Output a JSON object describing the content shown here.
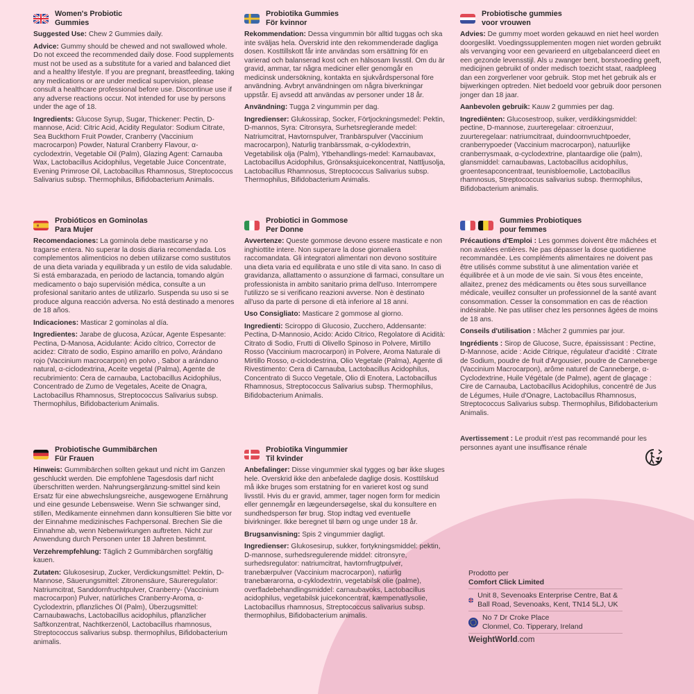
{
  "colors": {
    "background": "#fde0e7",
    "blob": "#f1c0d0",
    "text": "#3a3a3a"
  },
  "sections": [
    {
      "flags": [
        "uk-flag-icon"
      ],
      "title": [
        "Women's Probiotic",
        "Gummies"
      ],
      "paras": [
        {
          "label": "Suggested Use:",
          "text": "Chew 2 Gummies daily."
        },
        {
          "label": "Advice:",
          "text": "Gummy should be chewed and not swallowed whole. Do not exceed the recommended daily dose. Food supplements must not be used as a substitute for a varied and balanced diet and a healthy lifestyle. If you are pregnant, breastfeeding, taking any medications or are under medical supervision, please consult a healthcare professional before use. Discontinue use if any adverse reactions occur. Not intended for use by persons under the age of 18."
        },
        {
          "label": "Ingredients:",
          "text": "Glucose Syrup, Sugar, Thickener: Pectin, D-mannose, Acid: Citric Acid, Acidity Regulator: Sodium Citrate, Sea Buckthorn Fruit Powder, Cranberry (Vaccinium macrocarpon) Powder, Natural Cranberry Flavour, α-cyclodextrin, Vegetable Oil (Palm), Glazing Agent: Carnauba Wax, Lactobacillus Acidophilus, Vegetable Juice Concentrate, Evening Primrose Oil, Lactobacillus Rhamnosus, Streptococcus Salivarius subsp. Thermophilus, Bifidobacterium Animalis."
        }
      ]
    },
    {
      "flags": [
        "sweden-flag-icon"
      ],
      "title": [
        "Probiotika Gummies",
        "För kvinnor"
      ],
      "paras": [
        {
          "label": "Rekommendation:",
          "text": "Dessa vingummin bör alltid tuggas och ska inte sväljas hela. Överskrid inte den rekommenderade dagliga dosen. Kosttillskott får inte användas som ersättning för en varierad och balanserad kost och en hälsosam livsstil. Om du är gravid, ammar, tar några mediciner eller genomgår en medicinsk undersökning, kontakta en sjukvårdspersonal före användning. Avbryt användningen om några biverkningar uppstår. Ej avsedd att användas av personer under 18 år."
        },
        {
          "label": "Användning:",
          "text": "Tugga 2 vingummin per dag."
        },
        {
          "label": "Ingredienser:",
          "text": "Glukossirap, Socker, Förtjockningsmedel: Pektin, D-mannos, Syra: Citronsyra, Surhetsreglerande medel: Natriumcitrat, Havtornspulver, Tranbärspulver (Vaccinium macrocarpon), Naturlig tranbärssmak, α-cyklodextrin, Vegetabilisk olja (Palm), Ytbehandlings-medel: Karnaubavax, Lactobacillus Acidophilus, Grönsaksjuicekoncentrat, Nattljusolja, Lactobacillus Rhamnosus, Streptococcus Salivarius subsp. Thermophilus, Bifidobacterium Animalis."
        }
      ]
    },
    {
      "flags": [
        "netherlands-flag-icon"
      ],
      "title": [
        "Probiotische gummies",
        "voor vrouwen"
      ],
      "paras": [
        {
          "label": "Advies:",
          "text": "De gummy moet worden gekauwd en niet heel worden doorgeslikt.  Voedingssupplementen mogen niet worden gebruikt als vervanging voor een gevarieerd en uitgebalanceerd dieet en een gezonde levensstijl. Als u zwanger bent, borstvoeding geeft, medicijnen gebruikt of onder medisch toezicht staat, raadpleeg dan een zorgverlener voor gebruik. Stop met het gebruik als er bijwerkingen optreden. Niet bedoeld voor gebruik door personen jonger dan 18 jaar."
        },
        {
          "label": "Aanbevolen gebruik:",
          "text": "Kauw 2 gummies per dag."
        },
        {
          "label": "Ingrediënten:",
          "text": "Glucosestroop, suiker, verdikkingsmiddel: pectine, D-mannose, zuurteregelaar: citroenzuur, zuurteregelaar: natriumcitraat, duindoornvruchtpoeder, cranberrypoeder (Vaccinium macrocarpon), natuurlijke cranberrysmaak, α-cyclodextrine, plantaardige olie (palm), glansmiddel: carnaubawas, Lactobacillus acidophilus, groentesapconcentraat, teunisbloemolie, Lactobacillus rhamnosus, Streptococcus salivarius subsp. thermophilus, Bifidobacterium animalis."
        }
      ]
    },
    {
      "flags": [
        "spain-flag-icon"
      ],
      "title": [
        "Probióticos en Gominolas",
        "Para Mujer"
      ],
      "paras": [
        {
          "label": "Recomendaciones:",
          "text": "La gominola debe masticarse y no tragarse entera. No superar la dosis diaria recomendada. Los complementos alimenticios no deben utilizarse como sustitutos de una dieta variada y equilibrada y un estilo de vida saludable. Si está embarazada, en periodo de lactancia, tomando algún medicamento o bajo supervisión médica, consulte a un profesional sanitario antes de utilizarlo. Suspenda su uso si se produce alguna reacción adversa. No está destinado a menores de 18 años."
        },
        {
          "label": "Indicaciones:",
          "text": "Masticar 2 gominolas al día."
        },
        {
          "label": "Ingredientes:",
          "text": "Jarabe de glucosa, Azúcar, Agente Espesante: Pectina, D-Manosa, Acidulante: Ácido cítrico, Corrector de acidez: Citrato de sodio, Espino amarillo en polvo, Arándano rojo (Vaccinium macrocarpon) en polvo , Sabor a arándano natural, α-ciclodextrina, Aceite vegetal (Palma), Agente de recubrimiento: Cera de carnauba, Lactobacillus Acidophilus, Concentrado de Zumo de Vegetales, Aceite de Onagra, Lactobacillus Rhamnosus, Streptococcus Salivarius subsp. Thermophilus, Bifidobacterium Animalis."
        }
      ]
    },
    {
      "flags": [
        "italy-flag-icon"
      ],
      "title": [
        "Probiotici in Gommose",
        "Per Donne"
      ],
      "paras": [
        {
          "label": "Avvertenze:",
          "text": "Queste gommose devono essere masticate e non inghiottite intere. Non superare la dose giornaliera raccomandata. Gli integratori alimentari non devono sostituire una dieta varia ed equilibrata e uno stile di vita sano. In caso di gravidanza, allattamento o assunzione di farmaci, consultare un professionista in ambito sanitario prima dell'uso. Interrompere l'utilizzo se si verificano reazioni avverse. Non è destinato all'uso da parte di persone di età inferiore al 18 anni."
        },
        {
          "label": "Uso Consigliato:",
          "text": "Masticare 2 gommose al giorno."
        },
        {
          "label": "Ingredienti:",
          "text": "Sciroppo di Glucosio, Zucchero, Addensante: Pectina, D-Mannosio, Acido: Acido Citrico, Regolatore di Acidità: Citrato di Sodio, Frutti di Olivello Spinoso in Polvere, Mirtillo Rosso (Vaccinium macrocarpon) in Polvere, Aroma Naturale di Mirtillo Rosso, α-ciclodestrina, Olio Vegetale (Palma), Agente di Rivestimento: Cera di Carnauba, Lactobacillus Acidophilus, Concentrato di Succo Vegetale, Olio di Enotera, Lactobacillus Rhamnosus, Streptococcus Salivarius subsp. Thermophilus, Bifidobacterium Animalis."
        }
      ]
    },
    {
      "flags": [
        "france-flag-icon",
        "belgium-flag-icon"
      ],
      "title": [
        "Gummies Probiotiques",
        "pour femmes"
      ],
      "paras": [
        {
          "label": "Précautions d'Emploi :",
          "text": " Les gommes doivent être mâchées et non avalées entières. Ne pas dépasser la dose quotidienne recommandée. Les compléments alimentaires ne doivent pas être utilisés comme substitut à une alimentation variée et équilibrée et à un mode de vie sain. Si vous êtes enceinte, allaitez, prenez des médicaments ou êtes sous surveillance médicale, veuillez consulter un professionnel de la santé avant consommation. Cesser la consommation en cas de réaction indésirable. Ne pas utiliser chez les personnes âgées de moins de 18 ans."
        },
        {
          "label": "Conseils d'utilisation :",
          "text": "Mâcher 2 gummies par jour."
        },
        {
          "label": "Ingrédients :",
          "text": "Sirop de Glucose, Sucre, épaississant : Pectine, D-Mannose, acide : Acide Citrique, régulateur d'acidité : Citrate de Sodium, poudre de fruit d'Argousier, poudre de Canneberge (Vaccinium Macrocarpon), arôme naturel de Canneberge, α-Cyclodextrine, Huile Végétale (de Palme), agent de glaçage : Cire de Carnauba, Lactobacillus Acidophilus, concentré de Jus de Légumes, Huile d'Onagre, Lactobacillus Rhamnosus, Streptococcus Salivarius subsp. Thermophilus, Bifidobacterium Animalis."
        }
      ]
    },
    {
      "flags": [
        "germany-flag-icon"
      ],
      "title": [
        "Probiotische Gummibärchen",
        "Für Frauen"
      ],
      "paras": [
        {
          "label": "Hinweis:",
          "text": "Gummibärchen sollten gekaut und nicht im Ganzen geschluckt werden. Die empfohlene Tagesdosis darf nicht überschritten werden. Nahrungsergänzung-smittel sind kein Ersatz für eine abwechslungsreiche, ausgewogene Ernährung und eine gesunde Lebensweise. Wenn Sie schwanger sind, stillen, Medikamente einnehmen dann konsultieren Sie bitte vor der Einnahme medizinisches Fachpersonal. Brechen Sie die Einnahme ab, wenn Nebenwirkungen auftreten. Nicht zur Anwendung durch Personen unter 18 Jahren bestimmt."
        },
        {
          "label": "Verzehrempfehlung:",
          "text": "Täglich 2 Gummibärchen sorgfältig kauen."
        },
        {
          "label": "Zutaten:",
          "text": "Glukosesirup, Zucker, Verdickungsmittel: Pektin, D-Mannose, Säuerungsmittel: Zitronensäure, Säureregulator: Natriumcitrat, Sanddornfruchtpulver, Cranberry- (Vaccinium macrocarpon) Pulver, natürliches Cranberry-Aroma, α-Cyclodextrin, pflanzliches Öl (Palm), Überzugsmittel: Carnaubawachs, Lactobacillus acidophilus, pflanzlicher Saftkonzentrat, Nachtkerzenöl, Lactobacillus rhamnosus, Streptococcus salivarius subsp. thermophilus, Bifidobacterium animalis."
        }
      ]
    },
    {
      "flags": [
        "denmark-flag-icon"
      ],
      "title": [
        "Probiotika Vingummier",
        "Til kvinder"
      ],
      "paras": [
        {
          "label": "Anbefalinger:",
          "text": "Disse vingummier skal tygges og bør ikke sluges hele. Overskrid ikke den anbefalede daglige dosis. Kosttilskud må ikke bruges som erstatning for en varieret kost og sund livsstil. Hvis du er gravid, ammer, tager nogen form for medicin eller gennemgår en lægeundersøgelse, skal du konsultere en sundhedsperson før brug. Stop indtag ved eventuelle bivirkninger. Ikke beregnet til børn og unge under 18 år."
        },
        {
          "label": "Brugsanvisning:",
          "text": "Spis 2 vingummier dagligt."
        },
        {
          "label": "Ingredienser:",
          "text": "Glukosesirup, sukker, fortykningsmiddel: pektin, D-mannose, surhedsregulerende middel: citronsyre, surhedsregulator: natriumcitrat, havtornfrugtpulver, tranebærpulver (Vaccinium macrocarpon), naturlig tranebærarorna, α-cyklodextrin, vegetabilsk olie (palme), overfladebehandlingsmiddel: carnaubavoks, Lactobacillus acidophilus, vegetabilsk juicekoncentrat, kæmpenatlysolie, Lactobacillus rhamnosus, Streptococcus salivarius subsp. thermophilus, Bifidobacterium animalis."
        }
      ]
    }
  ],
  "avertissement": {
    "label": "Avertissement :",
    "text": "Le produit n'est pas recommandé pour les personnes ayant une insuffisance rénale"
  },
  "recycle_icon": "triman-recycling-icon",
  "footer": {
    "made_for": "Prodotto per",
    "company": "Comfort Click Limited",
    "uk_address": "Unit 8, Sevenoaks Enterprise Centre, Bat & Ball Road, Sevenoaks, Kent, TN14 5LJ, UK",
    "eu_address_line1": "No 7 Dr Croke Place",
    "eu_address_line2": "Clonmel, Co. Tipperary, Ireland",
    "brand_bold": "WeightWorld",
    "brand_suffix": ".com"
  }
}
